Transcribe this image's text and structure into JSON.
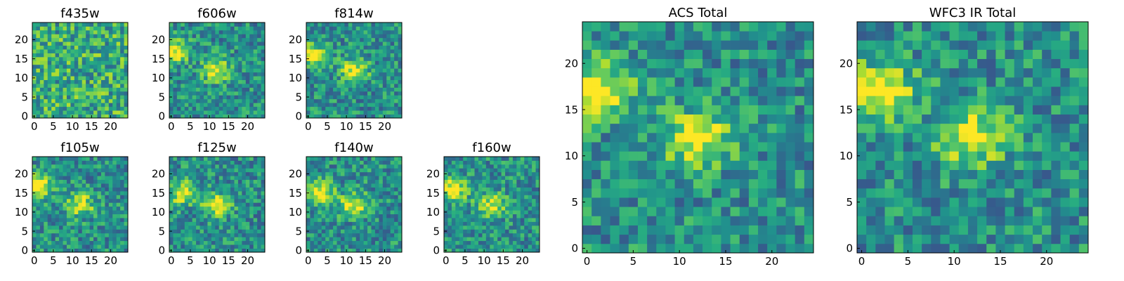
{
  "chart_data": [
    {
      "type": "heatmap",
      "title": "f435w",
      "xticks": [
        "0",
        "5",
        "10",
        "15",
        "20"
      ],
      "yticks": [
        "0",
        "5",
        "10",
        "15",
        "20"
      ],
      "xlim": [
        -0.5,
        24.5
      ],
      "ylim": [
        -0.5,
        24.5
      ],
      "grid_size": [
        25,
        25
      ],
      "colormap": "viridis",
      "blob_features": []
    },
    {
      "type": "heatmap",
      "title": "f606w",
      "xticks": [
        "0",
        "5",
        "10",
        "15",
        "20"
      ],
      "yticks": [
        "0",
        "5",
        "10",
        "15",
        "20"
      ],
      "xlim": [
        -0.5,
        24.5
      ],
      "ylim": [
        -0.5,
        24.5
      ],
      "grid_size": [
        25,
        25
      ],
      "colormap": "viridis",
      "blob_features": [
        {
          "x": 1,
          "y": 17,
          "intensity": 0.95
        },
        {
          "x": 12,
          "y": 12,
          "intensity": 0.85
        }
      ]
    },
    {
      "type": "heatmap",
      "title": "f814w",
      "xticks": [
        "0",
        "5",
        "10",
        "15",
        "20"
      ],
      "yticks": [
        "0",
        "5",
        "10",
        "15",
        "20"
      ],
      "xlim": [
        -0.5,
        24.5
      ],
      "ylim": [
        -0.5,
        24.5
      ],
      "grid_size": [
        25,
        25
      ],
      "colormap": "viridis",
      "blob_features": [
        {
          "x": 1,
          "y": 16,
          "intensity": 0.95
        },
        {
          "x": 12,
          "y": 12,
          "intensity": 0.8
        }
      ]
    },
    {
      "type": "heatmap",
      "title": "f105w",
      "xticks": [
        "0",
        "5",
        "10",
        "15",
        "20"
      ],
      "yticks": [
        "0",
        "5",
        "10",
        "15",
        "20"
      ],
      "xlim": [
        -0.5,
        24.5
      ],
      "ylim": [
        -0.5,
        24.5
      ],
      "grid_size": [
        25,
        25
      ],
      "colormap": "viridis",
      "blob_features": [
        {
          "x": 1,
          "y": 17,
          "intensity": 0.95
        },
        {
          "x": 12,
          "y": 12,
          "intensity": 0.8
        }
      ]
    },
    {
      "type": "heatmap",
      "title": "f125w",
      "xticks": [
        "0",
        "5",
        "10",
        "15",
        "20"
      ],
      "yticks": [
        "0",
        "5",
        "10",
        "15",
        "20"
      ],
      "xlim": [
        -0.5,
        24.5
      ],
      "ylim": [
        -0.5,
        24.5
      ],
      "grid_size": [
        25,
        25
      ],
      "colormap": "viridis",
      "blob_features": [
        {
          "x": 3,
          "y": 15,
          "intensity": 0.9
        },
        {
          "x": 12,
          "y": 12,
          "intensity": 0.85
        }
      ]
    },
    {
      "type": "heatmap",
      "title": "f140w",
      "xticks": [
        "0",
        "5",
        "10",
        "15",
        "20"
      ],
      "yticks": [
        "0",
        "5",
        "10",
        "15",
        "20"
      ],
      "xlim": [
        -0.5,
        24.5
      ],
      "ylim": [
        -0.5,
        24.5
      ],
      "grid_size": [
        25,
        25
      ],
      "colormap": "viridis",
      "blob_features": [
        {
          "x": 3,
          "y": 15,
          "intensity": 0.95
        },
        {
          "x": 12,
          "y": 12,
          "intensity": 0.8
        }
      ]
    },
    {
      "type": "heatmap",
      "title": "f160w",
      "xticks": [
        "0",
        "5",
        "10",
        "15",
        "20"
      ],
      "yticks": [
        "0",
        "5",
        "10",
        "15",
        "20"
      ],
      "xlim": [
        -0.5,
        24.5
      ],
      "ylim": [
        -0.5,
        24.5
      ],
      "grid_size": [
        25,
        25
      ],
      "colormap": "viridis",
      "blob_features": [
        {
          "x": 2,
          "y": 16,
          "intensity": 0.95
        },
        {
          "x": 12,
          "y": 12,
          "intensity": 0.8
        }
      ]
    },
    {
      "type": "heatmap",
      "title": "ACS Total",
      "xticks": [
        "0",
        "5",
        "10",
        "15",
        "20"
      ],
      "yticks": [
        "0",
        "5",
        "10",
        "15",
        "20"
      ],
      "xlim": [
        -0.5,
        24.5
      ],
      "ylim": [
        -0.5,
        24.5
      ],
      "grid_size": [
        25,
        25
      ],
      "colormap": "viridis",
      "blob_features": [
        {
          "x": 1,
          "y": 17,
          "intensity": 1.0
        },
        {
          "x": 12,
          "y": 12,
          "intensity": 0.9
        }
      ]
    },
    {
      "type": "heatmap",
      "title": "WFC3 IR Total",
      "xticks": [
        "0",
        "5",
        "10",
        "15",
        "20"
      ],
      "yticks": [
        "0",
        "5",
        "10",
        "15",
        "20"
      ],
      "xlim": [
        -0.5,
        24.5
      ],
      "ylim": [
        -0.5,
        24.5
      ],
      "grid_size": [
        25,
        25
      ],
      "colormap": "viridis",
      "blob_features": [
        {
          "x": 2,
          "y": 17,
          "intensity": 1.0
        },
        {
          "x": 12,
          "y": 12,
          "intensity": 0.9
        }
      ]
    }
  ]
}
